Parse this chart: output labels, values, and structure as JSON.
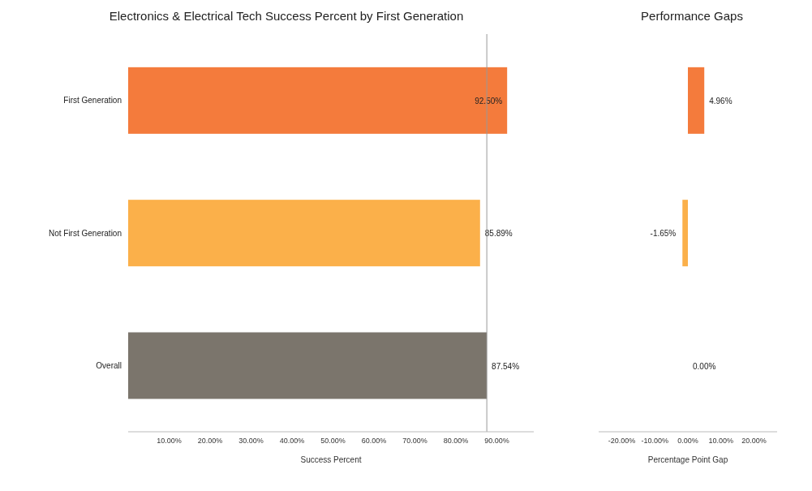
{
  "chart_data": [
    {
      "type": "bar",
      "orientation": "horizontal",
      "title": "Electronics & Electrical Tech Success Percent by First Generation",
      "xlabel": "Success Percent",
      "categories": [
        "First Generation",
        "Not First Generation",
        "Overall"
      ],
      "values": [
        92.5,
        85.89,
        87.54
      ],
      "colors": [
        "#f47b3c",
        "#fbb04a",
        "#7b756c"
      ],
      "value_labels": [
        "92.50%",
        "85.89%",
        "87.54%"
      ],
      "xlim": [
        0,
        99
      ],
      "xticks": [
        {
          "value": 10,
          "label": "10.00%"
        },
        {
          "value": 20,
          "label": "20.00%"
        },
        {
          "value": 30,
          "label": "30.00%"
        },
        {
          "value": 40,
          "label": "40.00%"
        },
        {
          "value": 50,
          "label": "50.00%"
        },
        {
          "value": 60,
          "label": "60.00%"
        },
        {
          "value": 70,
          "label": "70.00%"
        },
        {
          "value": 80,
          "label": "80.00%"
        },
        {
          "value": 90,
          "label": "90.00%"
        }
      ],
      "ref_lines": [
        {
          "axis": "x",
          "value": 87.54,
          "label": null,
          "color": "#999999"
        }
      ],
      "grid": false
    },
    {
      "type": "bar",
      "orientation": "horizontal",
      "title": "Performance Gaps",
      "xlabel": "Percentage Point Gap",
      "values": [
        4.96,
        -1.65,
        0.0
      ],
      "colors": [
        "#f47b3c",
        "#fbb04a",
        "#7b756c"
      ],
      "value_labels": [
        "4.96%",
        "-1.65%",
        "0.00%"
      ],
      "xlim": [
        -27,
        27
      ],
      "xticks": [
        {
          "value": -20,
          "label": "-20.00%"
        },
        {
          "value": -10,
          "label": "-10.00%"
        },
        {
          "value": 0,
          "label": "0.00%"
        },
        {
          "value": 10,
          "label": "10.00%"
        },
        {
          "value": 20,
          "label": "20.00%"
        }
      ],
      "tick_labels": "x",
      "grid": false
    }
  ]
}
